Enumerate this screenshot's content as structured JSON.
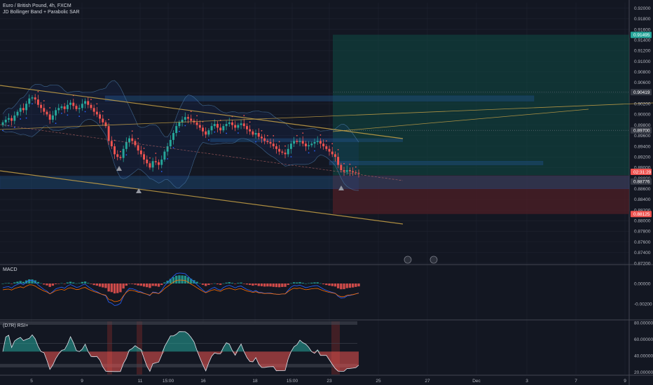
{
  "header": {
    "symbol_title": "Euro / British Pound, 4h, FXCM",
    "indicator_label": "JD Bollinger Band + Parabolic SAR"
  },
  "colors": {
    "background": "#131722",
    "up": "#26a69a",
    "down": "#ef5350",
    "trendline": "#c8a246",
    "zone": "#1e4d7a",
    "target": "#0f4a44",
    "stop": "#4a1e26",
    "rsi_line": "#e0e3eb",
    "macd_line": "#2962ff",
    "signal_line": "#ff6d00"
  },
  "chart_data": [
    {
      "type": "candlestick",
      "title": "Euro / British Pound, 4h, FXCM",
      "y_ticks": [
        "0.92000",
        "0.91800",
        "0.91600",
        "0.91400",
        "0.91200",
        "0.91000",
        "0.90800",
        "0.90600",
        "0.90400",
        "0.90200",
        "0.90000",
        "0.89800",
        "0.89600",
        "0.89400",
        "0.89200",
        "0.89000",
        "0.88800",
        "0.88600",
        "0.88400",
        "0.88200",
        "0.88000",
        "0.87800",
        "0.87600",
        "0.87400",
        "0.87200"
      ],
      "ylim": [
        0.872,
        0.921
      ],
      "x_ticks": [
        "5",
        "9",
        "11",
        "15:00",
        "16",
        "18",
        "15:00",
        "23",
        "25",
        "27",
        "Dec",
        "3",
        "7",
        "9"
      ],
      "series_close": [
        0.8985,
        0.899,
        0.8993,
        0.8988,
        0.8998,
        0.9005,
        0.9012,
        0.9008,
        0.902,
        0.903,
        0.9032,
        0.9028,
        0.9018,
        0.9012,
        0.9005,
        0.9,
        0.899,
        0.8998,
        0.9008,
        0.9012,
        0.9015,
        0.901,
        0.9018,
        0.9022,
        0.9016,
        0.901,
        0.9012,
        0.902,
        0.9025,
        0.9018,
        0.9012,
        0.9005,
        0.9,
        0.8992,
        0.8985,
        0.8978,
        0.895,
        0.894,
        0.8925,
        0.892,
        0.8918,
        0.8935,
        0.8948,
        0.8955,
        0.895,
        0.8942,
        0.8932,
        0.8925,
        0.8915,
        0.8908,
        0.89,
        0.8912,
        0.891,
        0.8905,
        0.8915,
        0.893,
        0.894,
        0.8952,
        0.8965,
        0.8978,
        0.8985,
        0.899,
        0.8995,
        0.8992,
        0.8988,
        0.8985,
        0.898,
        0.8975,
        0.8968,
        0.8962,
        0.897,
        0.8978,
        0.8982,
        0.8975,
        0.897,
        0.8978,
        0.8982,
        0.8985,
        0.898,
        0.8975,
        0.898,
        0.8983,
        0.8978,
        0.8972,
        0.8968,
        0.8962,
        0.8965,
        0.8958,
        0.8955,
        0.895,
        0.8948,
        0.8945,
        0.894,
        0.8935,
        0.893,
        0.8928,
        0.8925,
        0.8935,
        0.8945,
        0.895,
        0.8948,
        0.895,
        0.8945,
        0.894,
        0.8942,
        0.8945,
        0.8948,
        0.895,
        0.8945,
        0.894,
        0.8935,
        0.893,
        0.8925,
        0.892,
        0.8905,
        0.8895,
        0.8892,
        0.8895,
        0.8893,
        0.8891,
        0.889,
        0.8889
      ],
      "rsi_overbought": 60,
      "rsi_oversold": 30,
      "macd_ticks": [
        "0.00000",
        "-0.00200"
      ],
      "rsi_ticks": [
        "80.00000",
        "60.00000",
        "40.00000",
        "20.00000"
      ]
    }
  ],
  "price_tags": [
    {
      "label": "0.91495",
      "price": 0.91495,
      "color": "#26a69a"
    },
    {
      "label": "0.90419",
      "price": 0.90419,
      "color": "#363a45"
    },
    {
      "label": "0.89700",
      "price": 0.897,
      "color": "#363a45"
    },
    {
      "label": "02:31:29",
      "price": 0.8888,
      "color": "#ef5350"
    },
    {
      "label": "0.88776",
      "price": 0.88776,
      "color": "#363a45"
    },
    {
      "label": "0.88125",
      "price": 0.88125,
      "color": "#ef5350"
    }
  ],
  "panes": {
    "macd_label": "MACD",
    "rsi_label": "(D7R) RSI+"
  }
}
